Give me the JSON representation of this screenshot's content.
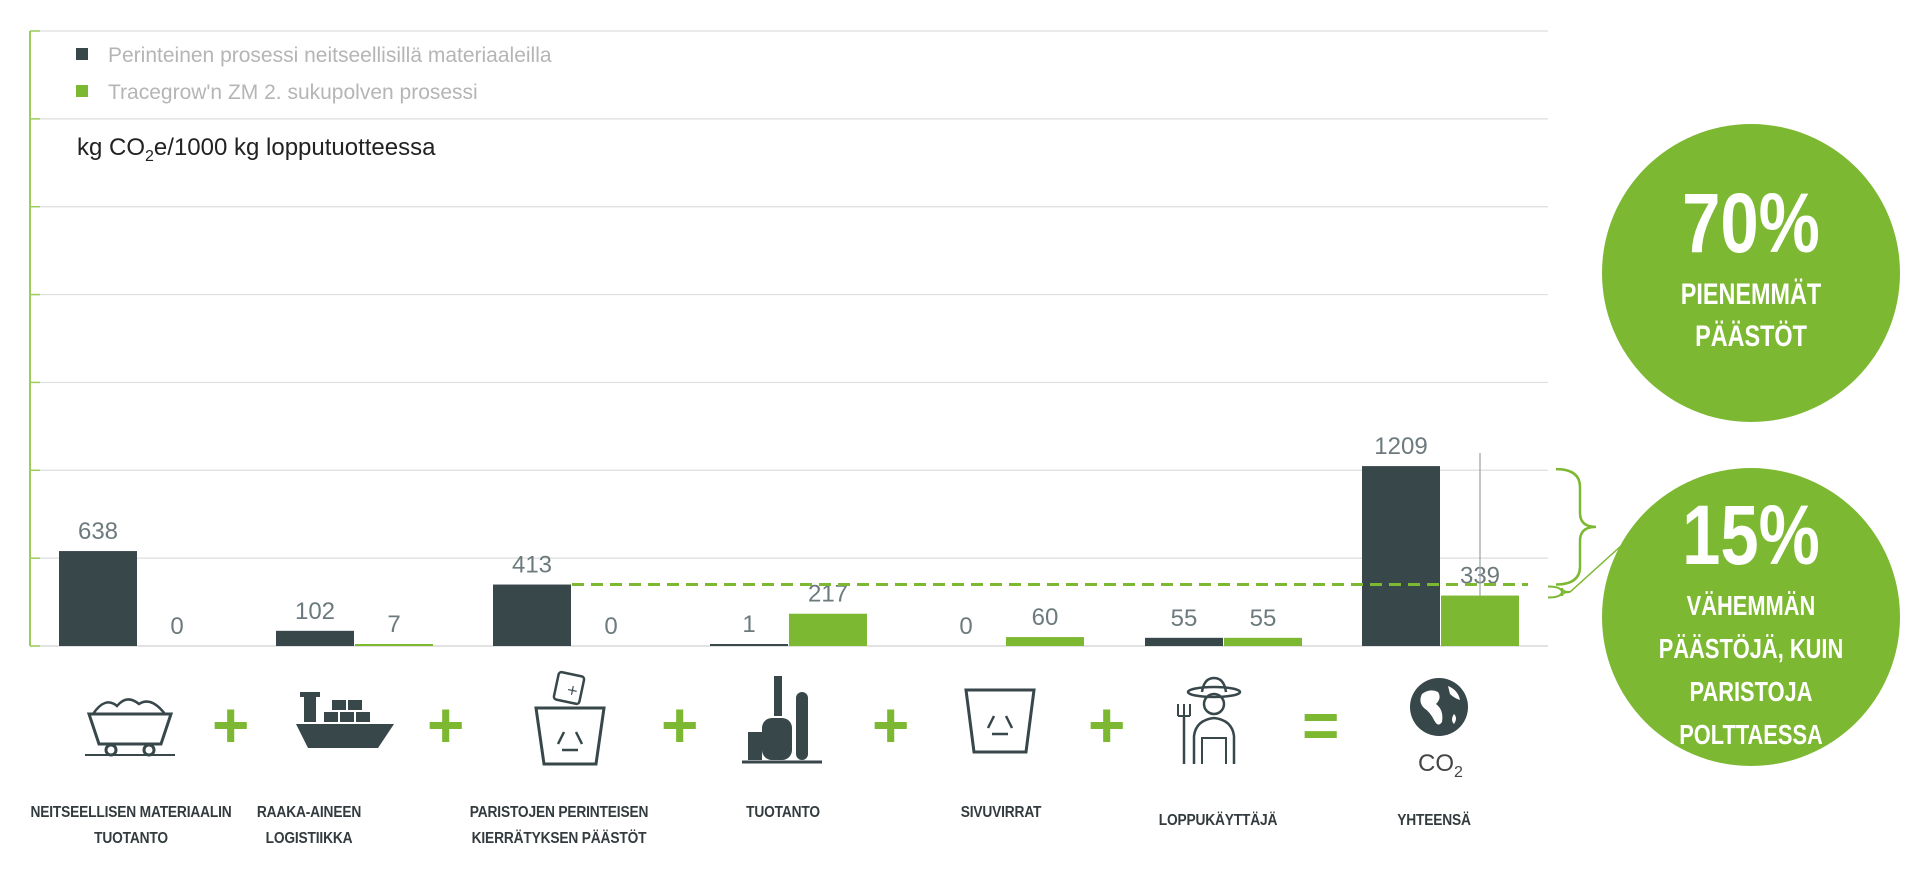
{
  "chart_data": {
    "type": "bar",
    "ylabel_prefix": "kg CO",
    "ylabel_sub": "2",
    "ylabel_suffix": "e/1000 kg lopputuotteessa",
    "ylim": [
      0,
      1200
    ],
    "grid": true,
    "legend_position": "top-left",
    "categories": [
      "NEITSEELLISEN MATERIAALIN TUOTANTO",
      "RAAKA-AINEEN LOGISTIIKKA",
      "PARISTOJEN PERINTEISEN KIERRÄTYKSEN PÄÄSTÖT",
      "TUOTANTO",
      "SIVUVIRRAT",
      "LOPPUKÄYTTÄJÄ",
      "YHTEENSÄ"
    ],
    "series": [
      {
        "name": "Perinteinen prosessi neitseellisillä materiaaleilla",
        "color": "#37474a",
        "values": [
          638,
          102,
          413,
          1,
          0,
          55,
          1209
        ]
      },
      {
        "name": "Tracegrow'n ZM 2. sukupolven prosessi",
        "color": "#7db832",
        "values": [
          0,
          7,
          0,
          217,
          60,
          55,
          339
        ]
      }
    ],
    "annotations": {
      "reduction_total": {
        "percent": "70%",
        "text": [
          "PIENEMMÄT",
          "PÄÄSTÖT"
        ]
      },
      "reduction_vs_recycling": {
        "percent": "15%",
        "text": [
          "VÄHEMMÄN",
          "PÄÄSTÖJÄ, KUIN",
          "PARISTOJA",
          "POLTTAESSA"
        ]
      },
      "reference_value": 413
    }
  },
  "flow": {
    "operators": [
      "+",
      "+",
      "+",
      "+",
      "+",
      "="
    ],
    "icons": [
      "mine-cart-icon",
      "cargo-ship-icon",
      "battery-recycling-bin-icon",
      "factory-icon",
      "recycling-bin-icon",
      "farmer-icon",
      "globe-icon"
    ],
    "co2_base": "CO",
    "co2_sub": "2"
  },
  "colors": {
    "dark": "#37474a",
    "green": "#7db832",
    "grid": "#dcdcdc",
    "axis": "#9ccc5a"
  }
}
